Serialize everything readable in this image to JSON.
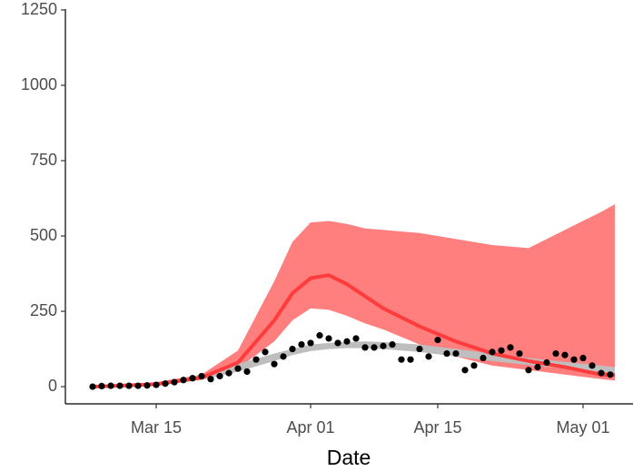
{
  "chart_data": {
    "type": "scatter",
    "x_label": "Date",
    "xlim": [
      5,
      67.5
    ],
    "xticks": [
      {
        "value": 15,
        "label": "Mar 15"
      },
      {
        "value": 32,
        "label": "Apr 01"
      },
      {
        "value": 46,
        "label": "Apr 15"
      },
      {
        "value": 62,
        "label": "May 01"
      }
    ],
    "ylim": [
      -57,
      1253
    ],
    "yticks": [
      0,
      250,
      500,
      750,
      1000,
      1250
    ],
    "band_x": [
      8,
      15,
      20,
      24,
      28,
      30,
      32,
      34,
      36,
      38,
      40,
      44,
      48,
      52,
      56,
      60,
      64,
      65.5
    ],
    "red_band": {
      "color": "#ff7f7f",
      "upper": [
        0,
        15,
        40,
        120,
        350,
        480,
        545,
        550,
        540,
        525,
        520,
        510,
        490,
        470,
        460,
        520,
        580,
        605
      ],
      "lower": [
        0,
        5,
        25,
        60,
        150,
        220,
        260,
        255,
        235,
        210,
        190,
        140,
        100,
        70,
        55,
        40,
        25,
        20
      ]
    },
    "gray_band": {
      "color": "#bebebe",
      "upper": [
        0,
        10,
        38,
        75,
        110,
        125,
        140,
        145,
        148,
        150,
        148,
        140,
        125,
        110,
        95,
        82,
        70,
        65
      ],
      "lower": [
        0,
        5,
        22,
        50,
        85,
        105,
        118,
        125,
        128,
        128,
        125,
        115,
        100,
        85,
        72,
        60,
        50,
        45
      ]
    },
    "red_line": {
      "color": "#ff3b3b",
      "values": [
        0,
        8,
        30,
        80,
        220,
        310,
        360,
        370,
        340,
        300,
        260,
        200,
        150,
        110,
        85,
        65,
        40,
        38
      ]
    },
    "points": {
      "color": "#000000",
      "x": [
        8,
        9,
        10,
        11,
        12,
        13,
        14,
        15,
        16,
        17,
        18,
        19,
        20,
        21,
        22,
        23,
        24,
        25,
        26,
        27,
        28,
        29,
        30,
        31,
        32,
        33,
        34,
        35,
        36,
        37,
        38,
        39,
        40,
        41,
        42,
        43,
        44,
        45,
        46,
        47,
        48,
        49,
        50,
        51,
        52,
        53,
        54,
        55,
        56,
        57,
        58,
        59,
        60,
        61,
        62,
        63,
        64,
        65
      ],
      "values": [
        0,
        2,
        3,
        3,
        3,
        3,
        4,
        6,
        10,
        15,
        22,
        28,
        35,
        25,
        35,
        45,
        60,
        50,
        90,
        115,
        75,
        100,
        125,
        140,
        145,
        170,
        160,
        145,
        150,
        160,
        130,
        130,
        135,
        140,
        90,
        90,
        125,
        100,
        155,
        110,
        110,
        55,
        70,
        95,
        115,
        120,
        130,
        110,
        55,
        65,
        80,
        110,
        105,
        90,
        95,
        70,
        45,
        40
      ]
    }
  }
}
